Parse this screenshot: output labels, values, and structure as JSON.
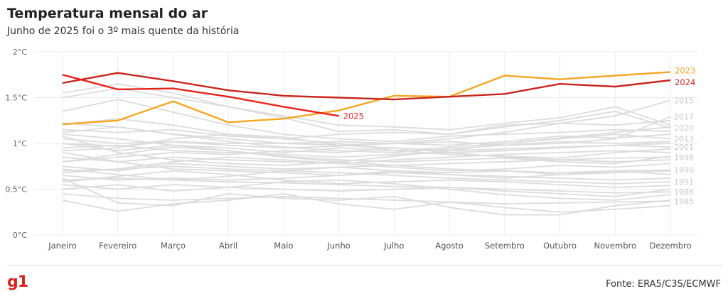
{
  "header": {
    "title": "Temperatura mensal do ar",
    "subtitle": "Junho de 2025 foi o 3º mais quente da história"
  },
  "footer": {
    "logo": "g1",
    "source": "Fonte: ERA5/C3S/ECMWF"
  },
  "colors": {
    "y2025": "#e8221b",
    "y2024": "#c8251e",
    "y2023": "#f5a623",
    "background_years": "#dcdcdc",
    "grid": "#ebebeb"
  },
  "chart_data": {
    "type": "line",
    "categories": [
      "Janeiro",
      "Fevereiro",
      "Março",
      "Abril",
      "Maio",
      "Junho",
      "Julho",
      "Agosto",
      "Setembro",
      "Outubro",
      "Novembro",
      "Dezembro"
    ],
    "ylim": [
      0,
      2
    ],
    "yticks": [
      {
        "value": 0,
        "label": "0°C"
      },
      {
        "value": 0.5,
        "label": "0.5°C"
      },
      {
        "value": 1,
        "label": "1°C"
      },
      {
        "value": 1.5,
        "label": "1.5°C"
      },
      {
        "value": 2,
        "label": "2°C"
      }
    ],
    "grid": true,
    "highlight_series": [
      {
        "name": "2023",
        "color": "#f5a623",
        "values": [
          1.21,
          1.25,
          1.46,
          1.23,
          1.27,
          1.36,
          1.52,
          1.51,
          1.74,
          1.7,
          1.74,
          1.78
        ]
      },
      {
        "name": "2024",
        "color": "#c8251e",
        "values": [
          1.66,
          1.77,
          1.68,
          1.58,
          1.52,
          1.5,
          1.48,
          1.51,
          1.54,
          1.65,
          1.62,
          1.69
        ]
      },
      {
        "name": "2025",
        "color": "#e8221b",
        "values": [
          1.75,
          1.59,
          1.6,
          1.51,
          1.4,
          1.3
        ]
      }
    ],
    "background_series": [
      {
        "name": "2015",
        "values": [
          1.0,
          0.97,
          1.02,
          1.0,
          1.0,
          1.02,
          1.0,
          1.05,
          1.12,
          1.22,
          1.3,
          1.47
        ]
      },
      {
        "name": "2017",
        "values": [
          1.2,
          1.27,
          1.2,
          1.1,
          1.07,
          0.98,
          1.0,
          1.02,
          0.98,
          1.0,
          1.05,
          1.29
        ]
      },
      {
        "name": "2020",
        "values": [
          1.55,
          1.65,
          1.55,
          1.4,
          1.28,
          1.13,
          1.15,
          1.1,
          1.18,
          1.25,
          1.35,
          1.17
        ]
      },
      {
        "name": "2013",
        "values": [
          1.0,
          0.92,
          0.98,
          0.95,
          0.9,
          0.95,
          0.92,
          0.96,
          1.0,
          1.05,
          1.1,
          1.05
        ]
      },
      {
        "name": "2001",
        "values": [
          0.8,
          0.85,
          0.9,
          0.88,
          0.92,
          0.9,
          0.95,
          0.92,
          0.94,
          0.96,
          0.98,
          0.96
        ]
      },
      {
        "name": "1998",
        "values": [
          1.12,
          1.18,
          1.1,
          1.05,
          1.0,
          0.98,
          0.95,
          0.9,
          0.85,
          0.82,
          0.84,
          0.85
        ]
      },
      {
        "name": "1999",
        "values": [
          0.9,
          0.8,
          0.72,
          0.7,
          0.68,
          0.65,
          0.7,
          0.68,
          0.7,
          0.68,
          0.7,
          0.71
        ]
      },
      {
        "name": "1991",
        "values": [
          0.7,
          0.72,
          0.75,
          0.72,
          0.7,
          0.68,
          0.65,
          0.62,
          0.6,
          0.58,
          0.56,
          0.58
        ]
      },
      {
        "name": "1986",
        "values": [
          0.6,
          0.62,
          0.6,
          0.58,
          0.57,
          0.55,
          0.53,
          0.52,
          0.5,
          0.48,
          0.46,
          0.47
        ]
      },
      {
        "name": "1985",
        "values": [
          0.45,
          0.4,
          0.38,
          0.4,
          0.42,
          0.4,
          0.38,
          0.36,
          0.34,
          0.35,
          0.36,
          0.37
        ]
      },
      {
        "name": "",
        "values": [
          1.5,
          1.6,
          1.5,
          1.4,
          1.3,
          1.2,
          1.18,
          1.15,
          1.22,
          1.28,
          1.4,
          1.2
        ]
      },
      {
        "name": "",
        "values": [
          1.35,
          1.48,
          1.34,
          1.2,
          1.1,
          1.05,
          1.02,
          1.08,
          1.1,
          1.12,
          1.15,
          1.13
        ]
      },
      {
        "name": "",
        "values": [
          1.15,
          1.12,
          1.15,
          1.08,
          1.05,
          1.1,
          1.12,
          1.1,
          1.2,
          1.22,
          1.2,
          1.25
        ]
      },
      {
        "name": "",
        "values": [
          1.05,
          1.0,
          1.02,
          0.98,
          0.95,
          0.97,
          1.0,
          0.98,
          1.02,
          1.08,
          1.06,
          1.1
        ]
      },
      {
        "name": "",
        "values": [
          0.95,
          0.98,
          0.92,
          0.9,
          0.88,
          0.85,
          0.88,
          0.9,
          0.92,
          0.95,
          0.98,
          1.0
        ]
      },
      {
        "name": "",
        "values": [
          0.85,
          0.8,
          0.85,
          0.82,
          0.8,
          0.78,
          0.82,
          0.85,
          0.88,
          0.9,
          0.92,
          0.9
        ]
      },
      {
        "name": "",
        "values": [
          0.75,
          0.7,
          0.78,
          0.75,
          0.72,
          0.74,
          0.76,
          0.78,
          0.8,
          0.82,
          0.8,
          0.82
        ]
      },
      {
        "name": "",
        "values": [
          0.65,
          0.6,
          0.62,
          0.6,
          0.62,
          0.65,
          0.68,
          0.66,
          0.64,
          0.62,
          0.6,
          0.62
        ]
      },
      {
        "name": "",
        "values": [
          0.55,
          0.5,
          0.55,
          0.52,
          0.5,
          0.48,
          0.5,
          0.52,
          0.48,
          0.45,
          0.42,
          0.5
        ]
      },
      {
        "name": "",
        "values": [
          0.38,
          0.26,
          0.34,
          0.38,
          0.45,
          0.34,
          0.28,
          0.36,
          0.3,
          0.25,
          0.28,
          0.32
        ]
      },
      {
        "name": "",
        "values": [
          0.62,
          0.35,
          0.32,
          0.45,
          0.4,
          0.38,
          0.42,
          0.3,
          0.22,
          0.22,
          0.32,
          0.38
        ]
      },
      {
        "name": "",
        "values": [
          1.1,
          1.05,
          0.98,
          0.92,
          0.85,
          0.8,
          0.76,
          0.72,
          0.7,
          0.66,
          0.68,
          0.7
        ]
      },
      {
        "name": "",
        "values": [
          0.92,
          0.95,
          1.05,
          1.1,
          1.05,
          1.0,
          0.92,
          0.88,
          0.86,
          0.84,
          0.9,
          0.94
        ]
      },
      {
        "name": "",
        "values": [
          0.68,
          0.72,
          0.8,
          0.85,
          0.82,
          0.78,
          0.74,
          0.7,
          0.72,
          0.76,
          0.74,
          0.78
        ]
      },
      {
        "name": "",
        "values": [
          0.8,
          0.88,
          0.96,
          0.92,
          0.86,
          0.82,
          0.8,
          0.82,
          0.84,
          0.8,
          0.78,
          0.86
        ]
      },
      {
        "name": "",
        "values": [
          0.58,
          0.64,
          0.7,
          0.66,
          0.6,
          0.56,
          0.58,
          0.6,
          0.58,
          0.55,
          0.52,
          0.54
        ]
      },
      {
        "name": "",
        "values": [
          1.22,
          1.18,
          1.1,
          1.02,
          0.96,
          0.92,
          0.9,
          0.94,
          0.98,
          1.02,
          1.0,
          1.02
        ]
      },
      {
        "name": "",
        "values": [
          0.72,
          0.66,
          0.6,
          0.64,
          0.7,
          0.74,
          0.7,
          0.66,
          0.62,
          0.66,
          0.7,
          0.66
        ]
      },
      {
        "name": "",
        "values": [
          0.5,
          0.55,
          0.48,
          0.52,
          0.58,
          0.6,
          0.56,
          0.5,
          0.44,
          0.4,
          0.38,
          0.44
        ]
      },
      {
        "name": "",
        "values": [
          1.08,
          0.9,
          0.82,
          0.78,
          0.76,
          0.8,
          0.86,
          0.92,
          1.0,
          1.06,
          1.12,
          1.18
        ]
      }
    ]
  }
}
